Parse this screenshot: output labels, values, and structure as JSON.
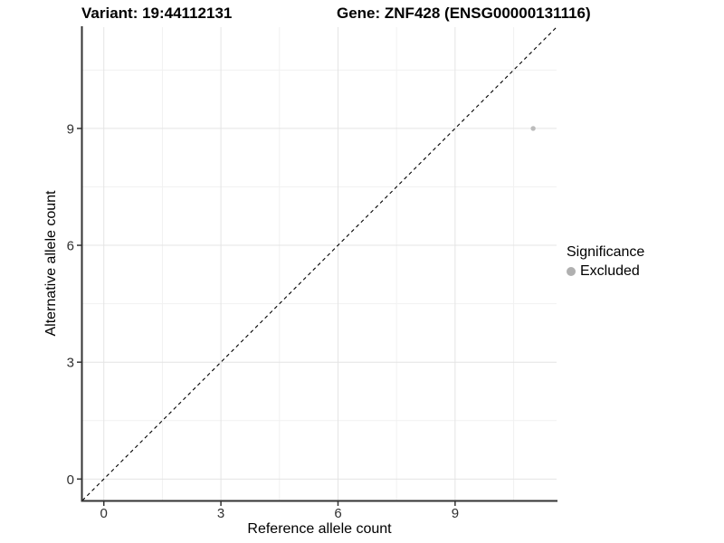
{
  "chart_data": {
    "type": "scatter",
    "title_left": "Variant: 19:44112131",
    "title_right": "Gene: ZNF428 (ENSG00000131116)",
    "xlabel": "Reference allele count",
    "ylabel": "Alternative allele count",
    "xlim": [
      -0.55,
      11.6
    ],
    "ylim": [
      -0.55,
      11.6
    ],
    "x_ticks": [
      0,
      3,
      6,
      9
    ],
    "y_ticks": [
      0,
      3,
      6,
      9
    ],
    "minor_breaks": [
      1.5,
      4.5,
      7.5,
      10.5
    ],
    "grid": true,
    "identity_line": {
      "style": "dashed",
      "slope": 1,
      "intercept": 0,
      "color": "#000000"
    },
    "series": [
      {
        "name": "Excluded",
        "color": "#bcbcbc",
        "points": [
          {
            "x": 11,
            "y": 9
          }
        ]
      }
    ],
    "legend": {
      "title": "Significance",
      "position": "right",
      "items": [
        {
          "label": "Excluded",
          "color": "#b0b0b0"
        }
      ]
    },
    "colors": {
      "background": "#ffffff",
      "grid_major": "#e4e4e4",
      "grid_minor": "#f1f1f1",
      "axis_line": "#333333",
      "tick_label": "#303030"
    }
  }
}
